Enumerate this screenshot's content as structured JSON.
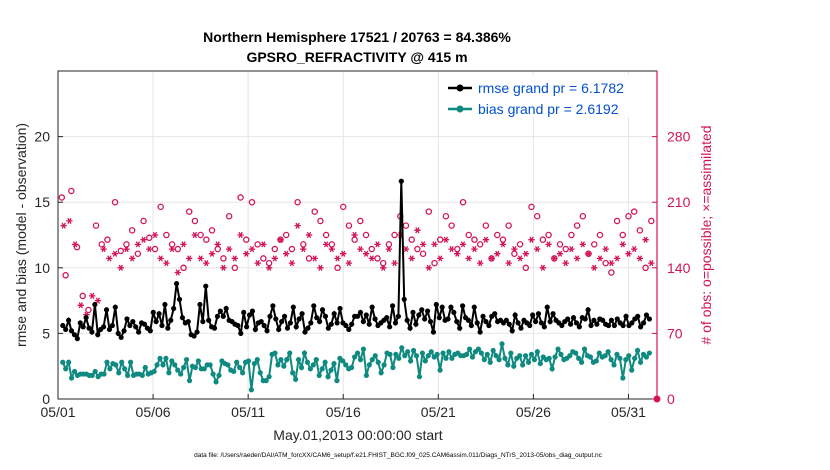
{
  "chart_data": {
    "type": "line",
    "title": "Northern Hemisphere 17521 / 20763 = 84.386%",
    "subtitle": "GPSRO_REFRACTIVITY @ 415 m",
    "xlabel": "May.01,2013 00:00:00 start",
    "ylabel_left": "rmse and bias (model - observation)",
    "ylabel_right": "# of obs: o=possible; ×=assimilated",
    "footnote": "data file: /Users/raeder/DAI/ATM_forcXX/CAM6_setup/f.e21.FHIST_BGC.f09_025.CAM6assim.011/Diags_NTrS_2013-05/obs_diag_output.nc",
    "x_range": [
      0,
      31.5
    ],
    "x_ticks": [
      {
        "value": 0,
        "label": "05/01"
      },
      {
        "value": 5,
        "label": "05/06"
      },
      {
        "value": 10,
        "label": "05/11"
      },
      {
        "value": 15,
        "label": "05/16"
      },
      {
        "value": 20,
        "label": "05/21"
      },
      {
        "value": 25,
        "label": "05/26"
      },
      {
        "value": 30,
        "label": "05/31"
      }
    ],
    "ylim_left": [
      0,
      25
    ],
    "yticks_left": [
      "0",
      "5",
      "10",
      "15",
      "20"
    ],
    "ylim_right": [
      0,
      350
    ],
    "yticks_right": [
      "0",
      "70",
      "140",
      "210",
      "280"
    ],
    "grid": true,
    "legend": {
      "placement": "top-right",
      "rmse_label": "rmse grand pr = 6.1782",
      "bias_label": "bias grand pr = 2.6192"
    },
    "colors": {
      "rmse": "#000000",
      "bias": "#0f8a80",
      "counts": "#d4145a",
      "legend_text": "#0050d0",
      "grid": "#e6e6e6"
    },
    "series": [
      {
        "name": "rmse",
        "values": [
          5.6,
          5.3,
          6.0,
          5.2,
          4.9,
          4.6,
          5.8,
          5.5,
          6.2,
          5.4,
          5.1,
          7.2,
          4.9,
          5.3,
          5.5,
          6.8,
          5.3,
          5.6,
          7.0,
          5.0,
          4.7,
          5.2,
          6.1,
          5.6,
          5.9,
          5.5,
          5.1,
          5.8,
          5.7,
          5.4,
          5.2,
          6.6,
          5.9,
          6.5,
          5.6,
          7.2,
          5.4,
          6.0,
          6.9,
          8.8,
          7.6,
          6.2,
          5.8,
          5.9,
          4.9,
          4.8,
          5.1,
          7.2,
          5.9,
          8.6,
          6.0,
          5.5,
          5.4,
          6.3,
          6.7,
          6.3,
          6.9,
          6.0,
          5.9,
          5.7,
          5.6,
          5.0,
          6.6,
          5.5,
          6.4,
          6.7,
          5.3,
          5.8,
          5.9,
          5.6,
          5.2,
          6.3,
          7.1,
          6.1,
          5.3,
          5.9,
          6.3,
          5.4,
          5.8,
          7.0,
          5.5,
          6.1,
          6.5,
          5.1,
          5.4,
          5.8,
          7.1,
          6.2,
          5.9,
          6.8,
          6.3,
          5.4,
          5.7,
          6.5,
          5.8,
          6.9,
          5.8,
          5.6,
          5.3,
          5.7,
          6.3,
          6.3,
          6.6,
          5.9,
          6.4,
          5.7,
          7.0,
          6.1,
          5.6,
          5.8,
          6.0,
          6.2,
          5.5,
          7.1,
          5.8,
          6.3,
          16.6,
          7.6,
          6.0,
          5.4,
          6.6,
          5.7,
          6.4,
          6.8,
          6.1,
          6.7,
          5.9,
          5.1,
          7.2,
          6.2,
          7.0,
          6.0,
          6.1,
          7.0,
          6.6,
          5.9,
          5.4,
          7.1,
          6.2,
          6.0,
          5.6,
          7.0,
          5.8,
          5.1,
          6.3,
          5.9,
          5.6,
          6.3,
          6.5,
          5.9,
          6.0,
          5.8,
          6.0,
          5.7,
          5.2,
          6.4,
          5.8,
          5.4,
          6.0,
          5.8,
          5.6,
          6.4,
          5.9,
          6.5,
          5.8,
          5.5,
          7.0,
          5.9,
          6.5,
          6.0,
          5.8,
          5.6,
          5.9,
          6.1,
          5.7,
          6.2,
          5.8,
          5.5,
          6.2,
          6.1,
          6.8,
          5.6,
          6.0,
          5.7,
          6.1,
          6.0,
          5.7,
          5.6,
          6.0,
          5.6,
          6.1,
          5.8,
          5.6,
          6.3,
          5.6,
          5.8,
          6.1,
          6.3,
          5.5,
          5.8,
          6.4,
          6.1
        ]
      },
      {
        "name": "bias",
        "values": [
          2.8,
          2.3,
          2.8,
          1.6,
          2.1,
          1.8,
          1.9,
          1.9,
          1.9,
          1.8,
          1.8,
          2.1,
          1.7,
          1.9,
          1.9,
          2.8,
          2.3,
          2.7,
          2.6,
          2.0,
          2.8,
          2.3,
          1.8,
          2.8,
          1.8,
          1.9,
          1.9,
          1.8,
          2.4,
          1.9,
          2.0,
          2.1,
          2.6,
          3.1,
          2.6,
          3.1,
          2.0,
          2.9,
          2.6,
          2.2,
          1.9,
          2.4,
          3.0,
          1.4,
          2.5,
          2.4,
          2.9,
          2.3,
          2.3,
          2.6,
          2.6,
          1.9,
          1.3,
          1.8,
          2.9,
          2.7,
          2.6,
          2.2,
          2.1,
          2.8,
          2.4,
          2.0,
          2.8,
          2.9,
          0.7,
          2.7,
          3.0,
          2.0,
          1.4,
          1.4,
          1.7,
          3.4,
          3.5,
          2.6,
          3.0,
          2.5,
          3.0,
          3.5,
          2.0,
          1.5,
          3.0,
          2.4,
          3.5,
          2.8,
          2.3,
          2.6,
          3.0,
          1.8,
          2.3,
          2.8,
          1.7,
          2.2,
          2.7,
          1.4,
          3.1,
          2.9,
          2.6,
          2.3,
          2.4,
          3.2,
          3.5,
          3.0,
          3.8,
          1.8,
          2.6,
          3.0,
          3.3,
          2.8,
          2.0,
          2.6,
          3.5,
          3.4,
          2.4,
          3.4,
          3.1,
          3.9,
          3.3,
          3.6,
          2.9,
          3.7,
          3.3,
          1.7,
          3.5,
          2.9,
          3.3,
          3.6,
          3.2,
          3.4,
          2.2,
          3.5,
          3.1,
          3.6,
          3.1,
          3.4,
          3.5,
          3.3,
          3.3,
          3.4,
          3.8,
          3.2,
          3.6,
          3.8,
          3.5,
          3.0,
          3.4,
          2.8,
          3.7,
          3.3,
          3.0,
          4.2,
          3.1,
          2.6,
          3.5,
          2.5,
          3.1,
          3.3,
          2.6,
          3.3,
          2.8,
          3.4,
          3.0,
          3.6,
          2.7,
          3.2,
          3.0,
          3.1,
          2.3,
          3.2,
          3.8,
          3.4,
          3.0,
          3.1,
          3.3,
          3.6,
          3.5,
          3.1,
          2.8,
          3.8,
          3.3,
          3.2,
          2.8,
          2.9,
          3.5,
          3.2,
          3.3,
          3.6,
          3.0,
          2.6,
          3.4,
          3.1,
          1.6,
          3.0,
          3.3,
          2.2,
          3.1,
          3.7,
          2.8,
          3.4,
          3.2,
          3.5
        ]
      },
      {
        "name": "possible",
        "x": [
          0.2,
          0.4,
          0.7,
          1.0,
          1.3,
          1.6,
          2.0,
          2.3,
          2.6,
          3.0,
          3.3,
          3.6,
          3.9,
          4.2,
          4.5,
          4.8,
          5.1,
          5.4,
          5.7,
          6.0,
          6.3,
          6.6,
          6.9,
          7.2,
          7.5,
          7.8,
          8.1,
          8.4,
          8.7,
          9.0,
          9.3,
          9.6,
          9.9,
          10.2,
          10.5,
          10.8,
          11.1,
          11.4,
          11.7,
          12.0,
          12.3,
          12.6,
          12.9,
          13.2,
          13.5,
          13.8,
          14.1,
          14.4,
          14.7,
          15.0,
          15.3,
          15.6,
          15.9,
          16.2,
          16.5,
          16.8,
          17.1,
          17.4,
          17.7,
          18.0,
          18.3,
          18.6,
          18.9,
          19.2,
          19.5,
          19.8,
          20.1,
          20.4,
          20.7,
          21.0,
          21.3,
          21.6,
          21.9,
          22.2,
          22.5,
          22.8,
          23.1,
          23.4,
          23.7,
          24.0,
          24.3,
          24.6,
          24.9,
          25.2,
          25.5,
          25.8,
          26.1,
          26.4,
          26.7,
          27.0,
          27.3,
          27.6,
          27.9,
          28.2,
          28.5,
          28.8,
          29.1,
          29.4,
          29.7,
          30.0,
          30.3,
          30.6,
          30.9,
          31.2
        ],
        "values": [
          215,
          132,
          222,
          162,
          110,
          95,
          185,
          165,
          170,
          210,
          158,
          165,
          180,
          155,
          190,
          172,
          160,
          205,
          175,
          165,
          160,
          140,
          200,
          190,
          175,
          170,
          180,
          160,
          150,
          195,
          140,
          215,
          170,
          210,
          165,
          150,
          145,
          160,
          170,
          175,
          160,
          210,
          165,
          150,
          200,
          190,
          175,
          165,
          140,
          205,
          185,
          170,
          190,
          175,
          160,
          150,
          145,
          165,
          175,
          195,
          185,
          170,
          160,
          155,
          200,
          145,
          170,
          195,
          185,
          160,
          210,
          175,
          170,
          165,
          185,
          150,
          175,
          170,
          185,
          155,
          165,
          140,
          205,
          195,
          170,
          175,
          150,
          165,
          160,
          175,
          185,
          195,
          155,
          165,
          175,
          145,
          135,
          190,
          175,
          195,
          200,
          180,
          140,
          190
        ]
      },
      {
        "name": "assimilated",
        "x": [
          0.3,
          0.6,
          0.9,
          1.2,
          1.5,
          1.8,
          2.1,
          2.4,
          2.7,
          3.0,
          3.3,
          3.6,
          3.9,
          4.2,
          4.5,
          4.8,
          5.1,
          5.4,
          5.7,
          6.0,
          6.3,
          6.6,
          6.9,
          7.2,
          7.5,
          7.8,
          8.1,
          8.4,
          8.7,
          9.0,
          9.3,
          9.6,
          9.9,
          10.2,
          10.5,
          10.8,
          11.1,
          11.4,
          11.7,
          12.0,
          12.3,
          12.6,
          12.9,
          13.2,
          13.5,
          13.8,
          14.1,
          14.4,
          14.7,
          15.0,
          15.3,
          15.6,
          15.9,
          16.2,
          16.5,
          16.8,
          17.1,
          17.4,
          17.7,
          18.0,
          18.3,
          18.6,
          18.9,
          19.2,
          19.5,
          19.8,
          20.1,
          20.4,
          20.7,
          21.0,
          21.3,
          21.6,
          21.9,
          22.2,
          22.5,
          22.8,
          23.1,
          23.4,
          23.7,
          24.0,
          24.3,
          24.6,
          24.9,
          25.2,
          25.5,
          25.8,
          26.1,
          26.4,
          26.7,
          27.0,
          27.3,
          27.6,
          27.9,
          28.2,
          28.5,
          28.8,
          29.1,
          29.4,
          29.7,
          30.0,
          30.3,
          30.6,
          30.9,
          31.2
        ],
        "values": [
          185,
          190,
          165,
          100,
          90,
          110,
          105,
          160,
          150,
          155,
          140,
          160,
          150,
          165,
          170,
          160,
          175,
          150,
          145,
          160,
          135,
          165,
          150,
          175,
          150,
          145,
          155,
          165,
          140,
          160,
          150,
          175,
          155,
          160,
          145,
          165,
          140,
          150,
          170,
          155,
          145,
          185,
          160,
          175,
          150,
          140,
          165,
          160,
          150,
          155,
          145,
          175,
          160,
          155,
          150,
          165,
          140,
          160,
          145,
          175,
          160,
          150,
          180,
          165,
          140,
          165,
          150,
          170,
          160,
          155,
          165,
          150,
          160,
          145,
          170,
          150,
          155,
          165,
          145,
          160,
          150,
          155,
          170,
          160,
          140,
          165,
          150,
          155,
          145,
          160,
          150,
          165,
          155,
          140,
          150,
          160,
          145,
          150,
          165,
          155,
          160,
          150,
          170,
          145
        ]
      }
    ]
  }
}
